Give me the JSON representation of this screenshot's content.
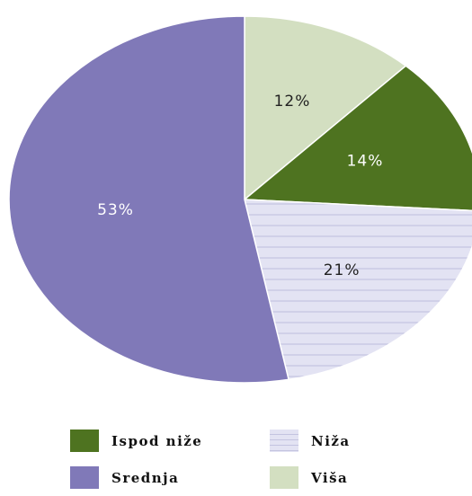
{
  "chart_data": {
    "type": "pie",
    "title": "",
    "slices": [
      {
        "label": "Ispod niže",
        "value": 14,
        "display": "14%",
        "color": "#4e7320",
        "label_color": "#ffffff",
        "pattern": ""
      },
      {
        "label": "Niža",
        "value": 21,
        "display": "21%",
        "color": "#e3e3f3",
        "label_color": "#222222",
        "pattern": "horizontal-lines"
      },
      {
        "label": "Srednja",
        "value": 53,
        "display": "53%",
        "color": "#8079b8",
        "label_color": "#ffffff",
        "pattern": ""
      },
      {
        "label": "Viša",
        "value": 12,
        "display": "12%",
        "color": "#d3dfc1",
        "label_color": "#222222",
        "pattern": ""
      }
    ],
    "legend": {
      "placement": "bottom",
      "order": [
        "Ispod niže",
        "Niža",
        "Srednja",
        "Viša"
      ]
    }
  }
}
